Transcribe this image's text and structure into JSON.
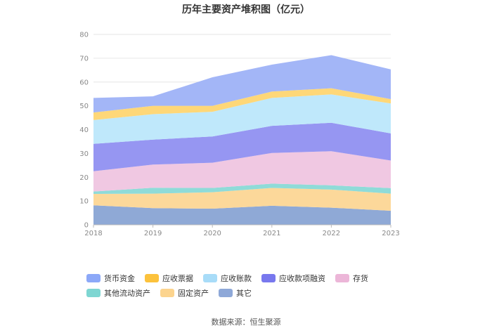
{
  "chart_data": {
    "type": "area",
    "stacked": true,
    "title": "历年主要资产堆积图（亿元）",
    "x": [
      "2018",
      "2019",
      "2020",
      "2021",
      "2022",
      "2023"
    ],
    "ylim": [
      0,
      80
    ],
    "yticks": [
      "0",
      "10",
      "20",
      "30",
      "40",
      "50",
      "60",
      "70",
      "80"
    ],
    "grid": true,
    "legend_position": "bottom",
    "series": [
      {
        "name": "其它",
        "values": [
          8.2,
          7.0,
          6.8,
          8.0,
          7.2,
          5.9
        ],
        "color": "#8fa9d6"
      },
      {
        "name": "固定资产",
        "values": [
          4.8,
          6.1,
          6.9,
          7.5,
          7.6,
          7.2
        ],
        "color": "#fcd89a"
      },
      {
        "name": "其他流动资产",
        "values": [
          1.0,
          2.5,
          1.8,
          1.8,
          1.8,
          2.3
        ],
        "color": "#8fdbd8"
      },
      {
        "name": "存货",
        "values": [
          8.5,
          9.7,
          10.6,
          12.9,
          14.3,
          11.6
        ],
        "color": "#f0c8e2"
      },
      {
        "name": "应收款项融资",
        "values": [
          11.5,
          10.5,
          11.0,
          11.4,
          12.0,
          11.4
        ],
        "color": "#9696f2"
      },
      {
        "name": "应收账款",
        "values": [
          10.0,
          10.7,
          10.4,
          11.7,
          11.9,
          12.6
        ],
        "color": "#bfe8fb"
      },
      {
        "name": "应收票据",
        "values": [
          3.2,
          3.5,
          2.5,
          2.7,
          2.6,
          1.8
        ],
        "color": "#fed778"
      },
      {
        "name": "货币资金",
        "values": [
          6.1,
          4.0,
          12.0,
          11.3,
          13.9,
          12.5
        ],
        "color": "#a3b6f7"
      }
    ]
  },
  "legend_items": [
    {
      "label": "货币资金",
      "color": "#8ca8f8"
    },
    {
      "label": "应收票据",
      "color": "#fcc23c"
    },
    {
      "label": "应收账款",
      "color": "#a8dcf8"
    },
    {
      "label": "应收款项融资",
      "color": "#7878ee"
    },
    {
      "label": "存货",
      "color": "#ecb6d8"
    },
    {
      "label": "其他流动资产",
      "color": "#7ed6d2"
    },
    {
      "label": "固定资产",
      "color": "#fcd48e"
    },
    {
      "label": "其它",
      "color": "#8ea8d8"
    }
  ],
  "source_text": "数据来源：恒生聚源"
}
